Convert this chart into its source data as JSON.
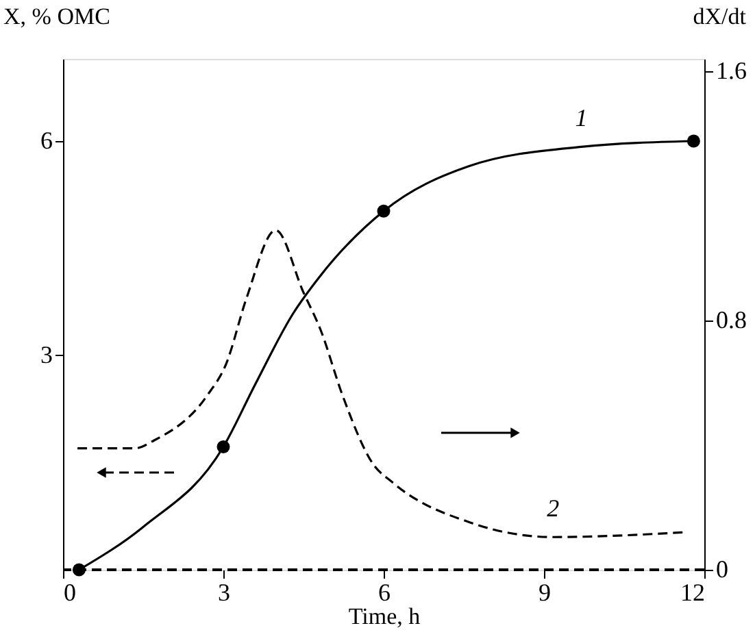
{
  "chart_data": {
    "type": "line",
    "xlabel": "Time, h",
    "ylabel": "X, % OMC",
    "y2label": "dX/dt",
    "xlim": [
      0,
      12
    ],
    "xticks": [
      0,
      3,
      6,
      9,
      12
    ],
    "ylim": [
      0,
      7.15
    ],
    "yticks": [
      3,
      6
    ],
    "y2lim": [
      0,
      1.64
    ],
    "y2ticks": [
      0,
      0.8,
      1.6
    ],
    "grid": false,
    "series": [
      {
        "name": "1",
        "color": "#000000",
        "line_style": "solid",
        "marker": "none",
        "x": [
          0.3,
          1.5,
          3,
          3.6,
          4.3,
          4.8,
          6,
          7.6,
          9.7,
          11.8
        ],
        "values": [
          0,
          0.6,
          1.72,
          2.6,
          3.58,
          4.1,
          5.02,
          5.65,
          5.92,
          6.0
        ]
      },
      {
        "type": "scatter",
        "color": "#000000",
        "marker": "circle",
        "x": [
          0.3,
          3,
          6,
          11.8
        ],
        "values": [
          0,
          1.72,
          5.02,
          6.0
        ]
      },
      {
        "name": "2",
        "axis": "y2",
        "color": "#000000",
        "line_style": "dashed",
        "marker": "none",
        "x": [
          0.27,
          1.35,
          1.7,
          2.7,
          3.05,
          3.43,
          3.98,
          4.5,
          4.82,
          5.23,
          5.8,
          6.17,
          7.65,
          9.17,
          11.6
        ],
        "values": [
          0.39,
          0.39,
          0.415,
          0.56,
          0.66,
          0.87,
          1.09,
          0.89,
          0.77,
          0.56,
          0.34,
          0.28,
          0.15,
          0.105,
          0.12
        ]
      }
    ],
    "ref_lines": [
      {
        "axis": "y",
        "value": 0,
        "label": null,
        "line_style": "dashed",
        "color": "#000000"
      }
    ]
  }
}
